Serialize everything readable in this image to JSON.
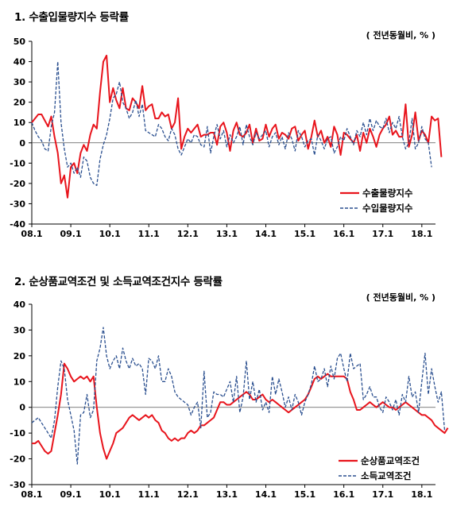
{
  "charts": [
    {
      "title": "1. 수출입물량지수 등락률",
      "unit": "( 전년동월비, % )",
      "legend": [
        "수출물량지수",
        "수입물량지수"
      ]
    },
    {
      "title": "2. 순상품교역조건 및 소득교역조건지수 등락률",
      "unit": "( 전년동월비, % )",
      "legend": [
        "순상품교역조건",
        "소득교역조건"
      ]
    }
  ],
  "chart_data": [
    {
      "type": "line",
      "title": "1. 수출입물량지수 등락률",
      "unit": "( 전년동월비, % )",
      "xlabel": "",
      "ylabel": "",
      "x_ticks": [
        "08.1",
        "09.1",
        "10.1",
        "11.1",
        "12.1",
        "13.1",
        "14.1",
        "15.1",
        "16.1",
        "17.1",
        "18.1"
      ],
      "ylim": [
        -40,
        50
      ],
      "y_ticks": [
        50,
        40,
        30,
        20,
        10,
        0,
        -10,
        -20,
        -30,
        -40
      ],
      "legend_position": "bottom-right",
      "series": [
        {
          "name": "수출물량지수",
          "color": "#e8141c",
          "style": "solid",
          "values": [
            10,
            12,
            14,
            14,
            11,
            8,
            13,
            3,
            -5,
            -20,
            -16,
            -27,
            -12,
            -10,
            -15,
            -5,
            -1,
            -4,
            4,
            9,
            7,
            25,
            40,
            43,
            20,
            27,
            21,
            17,
            27,
            17,
            16,
            22,
            20,
            17,
            28,
            16,
            18,
            19,
            12,
            12,
            15,
            13,
            14,
            7,
            10,
            22,
            -3,
            3,
            7,
            5,
            7,
            9,
            3,
            4,
            4,
            5,
            5,
            -1,
            8,
            10,
            5,
            -4,
            6,
            10,
            4,
            3,
            5,
            9,
            0,
            7,
            1,
            2,
            9,
            3,
            7,
            9,
            2,
            5,
            4,
            2,
            7,
            8,
            1,
            4,
            6,
            -3,
            3,
            11,
            3,
            6,
            0,
            3,
            -2,
            8,
            4,
            -6,
            5,
            4,
            2,
            0,
            4,
            -4,
            5,
            0,
            7,
            3,
            -2,
            4,
            7,
            9,
            13,
            4,
            6,
            3,
            3,
            19,
            -2,
            4,
            15,
            1,
            6,
            4,
            0,
            13,
            11,
            12,
            -7
          ]
        },
        {
          "name": "수입물량지수",
          "color": "#2a4f8f",
          "style": "dashed",
          "values": [
            10,
            6,
            3,
            1,
            -3,
            -4,
            8,
            15,
            40,
            10,
            -3,
            -12,
            -10,
            -15,
            -12,
            -17,
            -7,
            -9,
            -17,
            -20,
            -21,
            -8,
            -1,
            4,
            12,
            22,
            24,
            30,
            20,
            17,
            12,
            15,
            21,
            13,
            19,
            6,
            5,
            4,
            3,
            9,
            7,
            3,
            1,
            7,
            4,
            -3,
            -6,
            -2,
            2,
            0,
            4,
            3,
            -1,
            -2,
            8,
            -5,
            3,
            9,
            2,
            6,
            -2,
            4,
            0,
            3,
            8,
            -1,
            9,
            3,
            -1,
            5,
            2,
            4,
            6,
            -2,
            3,
            5,
            -1,
            3,
            -3,
            5,
            2,
            -4,
            6,
            3,
            -2,
            1,
            2,
            -6,
            4,
            1,
            -3,
            2,
            3,
            -5,
            -2,
            3,
            1,
            7,
            3,
            -1,
            6,
            3,
            10,
            4,
            12,
            6,
            11,
            8,
            7,
            12,
            5,
            10,
            7,
            13,
            3,
            -3,
            0,
            12,
            -3,
            0,
            8,
            2,
            0,
            -12
          ]
        }
      ]
    },
    {
      "type": "line",
      "title": "2. 순상품교역조건 및 소득교역조건지수 등락률",
      "unit": "( 전년동월비, % )",
      "xlabel": "",
      "ylabel": "",
      "x_ticks": [
        "08.1",
        "09.1",
        "10.1",
        "11.1",
        "12.1",
        "13.1",
        "14.1",
        "15.1",
        "16.1",
        "17.1",
        "18.1"
      ],
      "ylim": [
        -30,
        40
      ],
      "y_ticks": [
        40,
        30,
        20,
        10,
        0,
        -10,
        -20,
        -30
      ],
      "legend_position": "bottom-right",
      "series": [
        {
          "name": "순상품교역조건",
          "color": "#e8141c",
          "style": "solid",
          "values": [
            -14,
            -14,
            -13,
            -15,
            -17,
            -18,
            -17,
            -10,
            -3,
            5,
            17,
            15,
            12,
            10,
            11,
            12,
            11,
            12,
            10,
            12,
            0,
            -10,
            -16,
            -20,
            -17,
            -14,
            -10,
            -9,
            -8,
            -6,
            -4,
            -3,
            -4,
            -5,
            -4,
            -3,
            -4,
            -3,
            -5,
            -6,
            -9,
            -10,
            -12,
            -13,
            -12,
            -13,
            -12,
            -12,
            -10,
            -9,
            -10,
            -9,
            -7,
            -7,
            -6,
            -5,
            -4,
            -1,
            2,
            2,
            1,
            1,
            2,
            3,
            4,
            5,
            6,
            5,
            3,
            3,
            4,
            5,
            3,
            2,
            3,
            2,
            1,
            0,
            -1,
            -2,
            -1,
            0,
            1,
            2,
            3,
            5,
            8,
            11,
            12,
            11,
            12,
            13,
            12,
            12,
            12,
            12,
            12,
            11,
            6,
            3,
            -1,
            -1,
            0,
            1,
            2,
            1,
            0,
            1,
            2,
            1,
            0,
            0,
            -1,
            0,
            1,
            2,
            1,
            0,
            -1,
            -2,
            -3,
            -3,
            -4,
            -5,
            -7,
            -8,
            -9,
            -10,
            -8
          ]
        },
        {
          "name": "소득교역조건",
          "color": "#2a4f8f",
          "style": "dashed",
          "values": [
            -6,
            -5,
            -4,
            -6,
            -8,
            -10,
            -12,
            -5,
            8,
            18,
            15,
            3,
            -3,
            -9,
            -22,
            -3,
            -2,
            5,
            -4,
            -1,
            18,
            23,
            31,
            20,
            15,
            18,
            20,
            15,
            23,
            18,
            15,
            19,
            16,
            17,
            15,
            5,
            19,
            18,
            15,
            20,
            10,
            10,
            15,
            12,
            6,
            4,
            3,
            2,
            1,
            -3,
            0,
            2,
            -8,
            14,
            -4,
            -2,
            6,
            5,
            5,
            4,
            7,
            10,
            2,
            12,
            -2,
            4,
            18,
            3,
            10,
            2,
            7,
            -1,
            2,
            -2,
            12,
            5,
            11,
            6,
            0,
            4,
            -1,
            5,
            2,
            -3,
            2,
            5,
            9,
            16,
            10,
            11,
            15,
            8,
            16,
            11,
            19,
            21,
            15,
            10,
            21,
            15,
            16,
            17,
            3,
            5,
            8,
            4,
            4,
            0,
            -2,
            4,
            2,
            -1,
            3,
            -3,
            5,
            2,
            12,
            4,
            6,
            -2,
            10,
            21,
            5,
            15,
            8,
            2,
            6,
            -9
          ]
        }
      ]
    }
  ]
}
